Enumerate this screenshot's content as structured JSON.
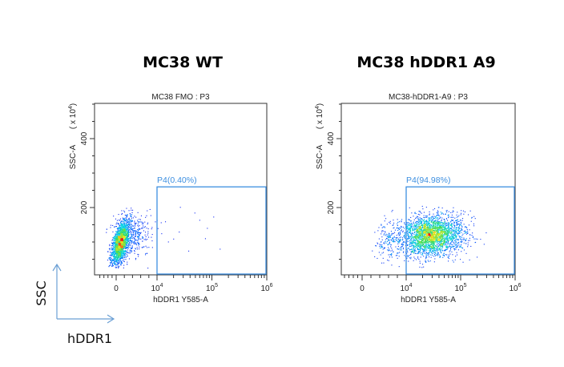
{
  "legend": {
    "y_arrow_label": "SSC",
    "x_arrow_label": "hDDR1",
    "arrow_color": "#6a9fd4"
  },
  "colors": {
    "gate": "#3d8fe0",
    "frame": "#333333"
  },
  "chart_data": [
    {
      "type": "scatter",
      "panel_title": "MC38 WT",
      "title": "MC38 FMO : P3",
      "xlabel": "hDDR1 Y585-A",
      "ylabel": "SSC-A",
      "y_multiplier": {
        "prefix": "( x 10",
        "exp": "4",
        "suffix": ")"
      },
      "x_scale": "biexponential",
      "xlim": [
        -4000,
        1000000
      ],
      "ylim": [
        0,
        500
      ],
      "x_ticks": [
        {
          "base": "0",
          "exp": "",
          "value": 0
        },
        {
          "base": "10",
          "exp": "4",
          "value": 10000
        },
        {
          "base": "10",
          "exp": "5",
          "value": 100000
        },
        {
          "base": "10",
          "exp": "6",
          "value": 1000000
        }
      ],
      "y_ticks": [
        {
          "label": "200",
          "value": 200
        },
        {
          "label": "400",
          "value": 400
        }
      ],
      "gate": {
        "label": "P4(0.40%)",
        "name": "P4",
        "percent": 0.4,
        "x_range": [
          10000,
          1000000
        ],
        "y_range": [
          0,
          260
        ]
      },
      "populations": [
        {
          "n": 1700,
          "x_mean": 1000,
          "x_sd": 1100,
          "y_mean": 100,
          "y_sd": 34,
          "xy_corr": 0.55,
          "x_mode": "linear"
        },
        {
          "n": 350,
          "x_mean": 4000,
          "x_sd": 2400,
          "y_mean": 115,
          "y_sd": 35,
          "xy_corr": 0.2,
          "x_mode": "linear"
        },
        {
          "n": 14,
          "x_mean": 30000,
          "x_sd_log": 0.35,
          "y_mean": 130,
          "y_sd": 35,
          "xy_corr": 0,
          "x_mode": "log"
        }
      ],
      "seed": 11
    },
    {
      "type": "scatter",
      "panel_title": "MC38 hDDR1 A9",
      "title": "MC38-hDDR1-A9 : P3",
      "xlabel": "hDDR1 Y585-A",
      "ylabel": "SSC-A",
      "y_multiplier": {
        "prefix": "( x 10",
        "exp": "4",
        "suffix": ")"
      },
      "x_scale": "biexponential",
      "xlim": [
        -4000,
        1000000
      ],
      "ylim": [
        0,
        500
      ],
      "x_ticks": [
        {
          "base": "0",
          "exp": "",
          "value": 0
        },
        {
          "base": "10",
          "exp": "4",
          "value": 10000
        },
        {
          "base": "10",
          "exp": "5",
          "value": 100000
        },
        {
          "base": "10",
          "exp": "6",
          "value": 1000000
        }
      ],
      "y_ticks": [
        {
          "label": "200",
          "value": 200
        },
        {
          "label": "400",
          "value": 400
        }
      ],
      "gate": {
        "label": "P4(94.98%)",
        "name": "P4",
        "percent": 94.98,
        "x_range": [
          10000,
          1000000
        ],
        "y_range": [
          0,
          260
        ]
      },
      "populations": [
        {
          "n": 2600,
          "x_mean": 28000,
          "x_sd_log": 0.3,
          "y_mean": 120,
          "y_sd": 30,
          "xy_corr": 0.1,
          "x_mode": "log"
        },
        {
          "n": 140,
          "x_mean": 6500,
          "x_sd": 2000,
          "y_mean": 110,
          "y_sd": 32,
          "xy_corr": 0,
          "x_mode": "linear"
        }
      ],
      "seed": 29
    }
  ]
}
